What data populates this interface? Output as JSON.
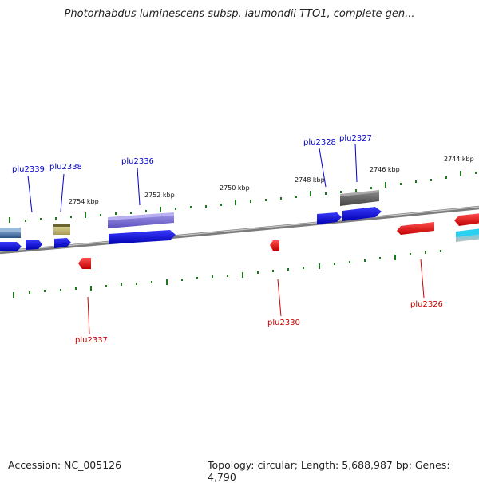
{
  "map": {
    "title": "Photorhabdus luminescens subsp. laumondii TTO1, complete gen...",
    "accession": "Accession: NC_005126",
    "summary": "Topology: circular; Length: 5,688,987 bp; Genes: 4,790"
  },
  "scale_labels": [
    "2754 kbp",
    "2752 kbp",
    "2750 kbp",
    "2748 kbp",
    "2746 kbp",
    "2744 kbp"
  ],
  "gene_labels": {
    "forward": [
      "plu2339",
      "plu2338",
      "plu2336",
      "plu2328",
      "plu2327"
    ],
    "reverse": [
      "plu2337",
      "plu2330",
      "plu2326"
    ]
  },
  "colors": {
    "forward_label": "#0000cc",
    "reverse_label": "#cc0000",
    "backbone": "#8a8a8a",
    "tick": "#1a7a1a"
  }
}
